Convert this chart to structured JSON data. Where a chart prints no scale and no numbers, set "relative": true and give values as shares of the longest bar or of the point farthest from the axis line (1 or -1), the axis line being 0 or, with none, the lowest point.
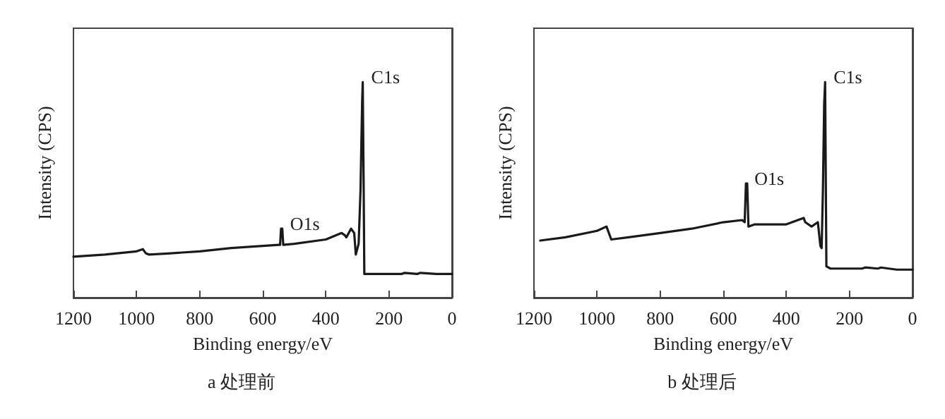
{
  "chart_data": [
    {
      "type": "line",
      "title": "a 处理前",
      "xlabel": "Binding energy/eV",
      "ylabel": "Intensity (CPS)",
      "relative": true,
      "xlim": [
        1200,
        0
      ],
      "xticks": [
        1200,
        1000,
        800,
        600,
        400,
        200,
        0
      ],
      "tick_labels": "x",
      "grid": false,
      "marker": "none",
      "line_style": "solid",
      "annotations": [
        {
          "text": "C1s",
          "x": 283,
          "y": 1
        },
        {
          "text": "O1s",
          "x": 540,
          "y": 0.32
        }
      ],
      "series": [
        {
          "color": "#1a1a1a",
          "x": [
            1200,
            1100,
            1000,
            980,
            970,
            960,
            900,
            800,
            700,
            600,
            550,
            545,
            542,
            538,
            535,
            500,
            400,
            350,
            340,
            335,
            320,
            310,
            305,
            296,
            290,
            285,
            283,
            280,
            278,
            250,
            160,
            150,
            110,
            100,
            50,
            0
          ],
          "values": [
            0.19,
            0.2,
            0.215,
            0.225,
            0.205,
            0.2,
            0.205,
            0.215,
            0.23,
            0.24,
            0.245,
            0.245,
            0.32,
            0.32,
            0.245,
            0.25,
            0.27,
            0.3,
            0.29,
            0.28,
            0.32,
            0.3,
            0.2,
            0.25,
            0.5,
            0.9,
            1,
            0.5,
            0.11,
            0.11,
            0.11,
            0.115,
            0.11,
            0.115,
            0.11,
            0.11
          ]
        }
      ]
    },
    {
      "type": "line",
      "title": "b 处理后",
      "xlabel": "Binding energy/eV",
      "ylabel": "Intensity (CPS)",
      "relative": true,
      "xlim": [
        1200,
        0
      ],
      "xticks": [
        1200,
        1000,
        800,
        600,
        400,
        200,
        0
      ],
      "tick_labels": "x",
      "grid": false,
      "marker": "none",
      "line_style": "solid",
      "annotations": [
        {
          "text": "C1s",
          "x": 277,
          "y": 1
        },
        {
          "text": "O1s",
          "x": 528,
          "y": 0.53
        }
      ],
      "series": [
        {
          "color": "#1a1a1a",
          "x": [
            1180,
            1100,
            1000,
            970,
            965,
            955,
            900,
            800,
            700,
            600,
            540,
            532,
            528,
            524,
            520,
            500,
            400,
            345,
            340,
            320,
            300,
            292,
            288,
            284,
            280,
            277,
            273,
            260,
            160,
            150,
            110,
            100,
            50,
            0
          ],
          "values": [
            0.265,
            0.28,
            0.31,
            0.33,
            0.31,
            0.27,
            0.28,
            0.3,
            0.32,
            0.35,
            0.36,
            0.35,
            0.53,
            0.53,
            0.33,
            0.34,
            0.34,
            0.37,
            0.35,
            0.33,
            0.35,
            0.24,
            0.23,
            0.5,
            0.9,
            1,
            0.145,
            0.135,
            0.135,
            0.14,
            0.135,
            0.14,
            0.13,
            0.13
          ]
        }
      ]
    }
  ]
}
